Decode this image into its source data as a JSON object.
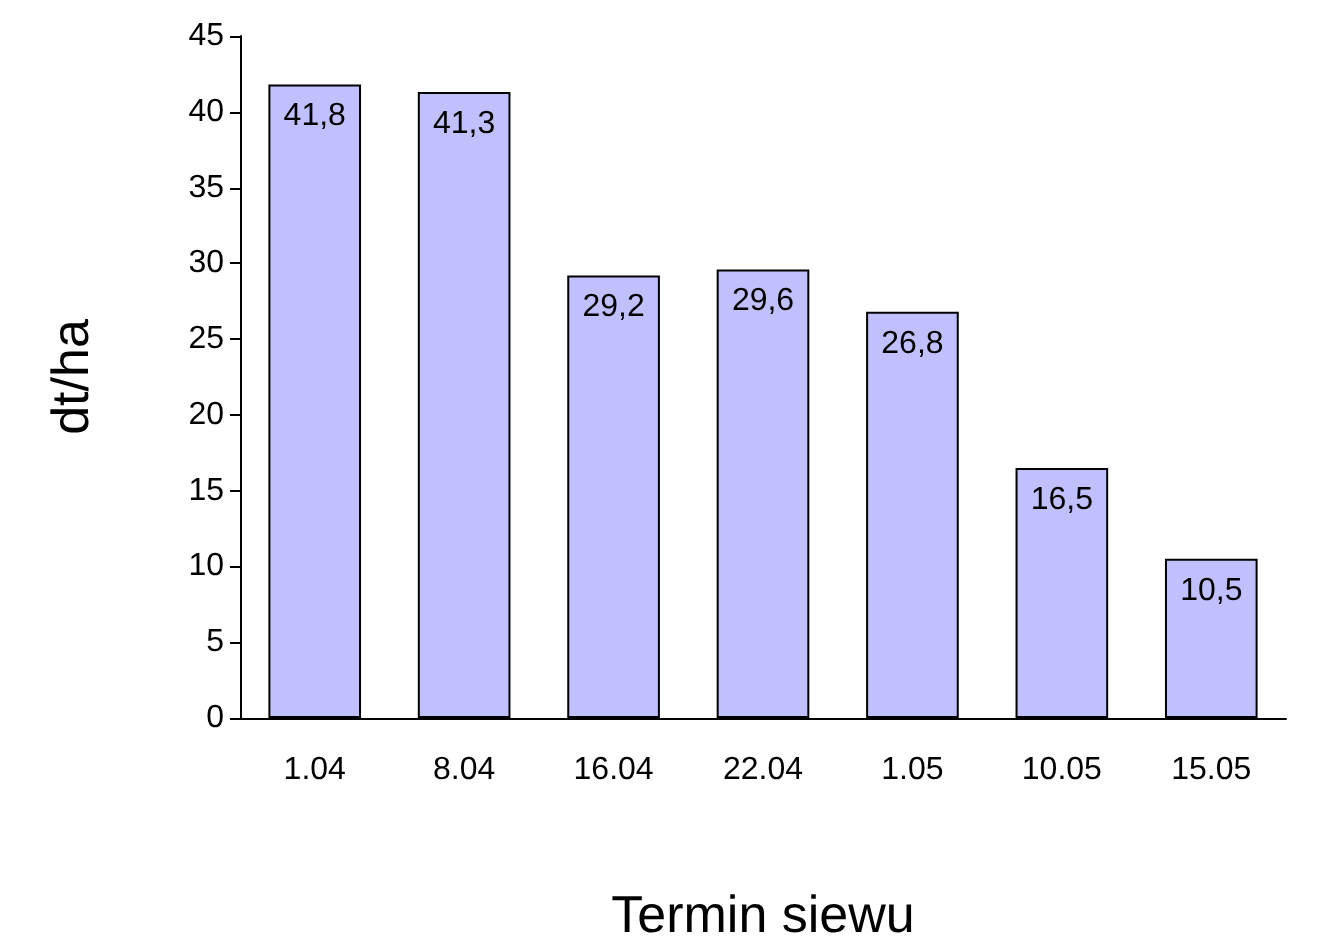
{
  "chart_data": {
    "type": "bar",
    "xlabel": "Termin siewu",
    "ylabel": "dt/ha",
    "categories": [
      "1.04",
      "8.04",
      "16.04",
      "22.04",
      "1.05",
      "10.05",
      "15.05"
    ],
    "values": [
      41.8,
      41.3,
      29.2,
      29.6,
      26.8,
      16.5,
      10.5
    ],
    "value_labels": [
      "41,8",
      "41,3",
      "29,2",
      "29,6",
      "26,8",
      "16,5",
      "10,5"
    ],
    "color": "#c0c0ff",
    "ylim": [
      0,
      45
    ],
    "yticks": [
      0,
      5,
      10,
      15,
      20,
      25,
      30,
      35,
      40,
      45
    ],
    "grid": false
  }
}
